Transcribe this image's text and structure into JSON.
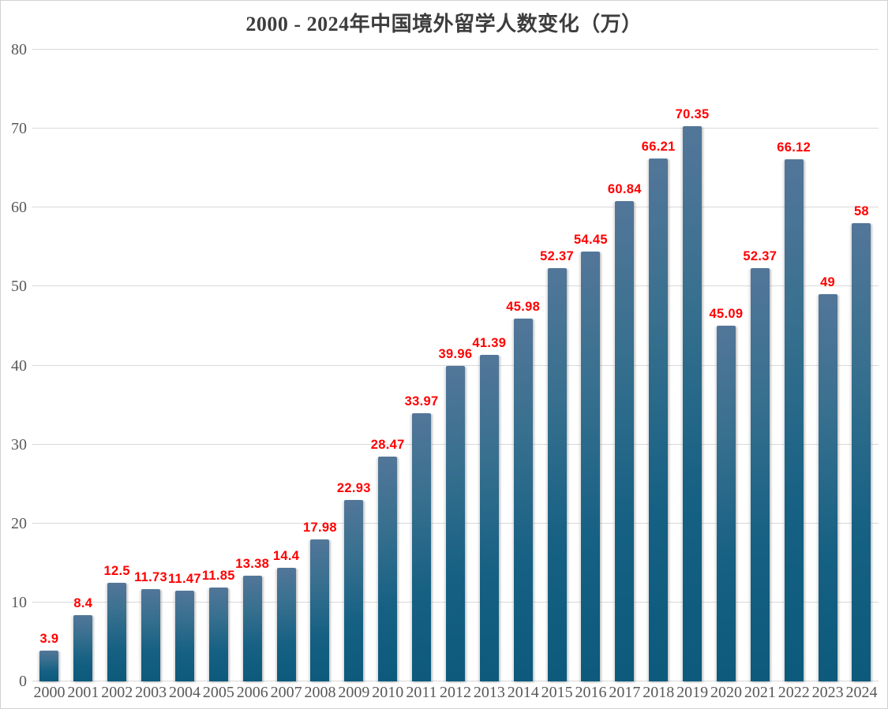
{
  "frame": {
    "background": "#ffffff",
    "border_color": "#d2d2d2"
  },
  "chart_data": {
    "type": "bar",
    "title": "2000 - 2024年中国境外留学人数变化（万）",
    "xlabel": "",
    "ylabel": "",
    "categories": [
      "2000",
      "2001",
      "2002",
      "2003",
      "2004",
      "2005",
      "2006",
      "2007",
      "2008",
      "2009",
      "2010",
      "2011",
      "2012",
      "2013",
      "2014",
      "2015",
      "2016",
      "2017",
      "2018",
      "2019",
      "2020",
      "2021",
      "2022",
      "2023",
      "2024"
    ],
    "values": [
      3.9,
      8.4,
      12.5,
      11.73,
      11.47,
      11.85,
      13.38,
      14.4,
      17.98,
      22.93,
      28.47,
      33.97,
      39.96,
      41.39,
      45.98,
      52.37,
      54.45,
      60.84,
      66.21,
      70.35,
      45.09,
      52.37,
      66.12,
      49,
      58
    ],
    "value_labels": [
      "3.9",
      "8.4",
      "12.5",
      "11.73",
      "11.47",
      "11.85",
      "13.38",
      "14.4",
      "17.98",
      "22.93",
      "28.47",
      "33.97",
      "39.96",
      "41.39",
      "45.98",
      "52.37",
      "54.45",
      "60.84",
      "66.21",
      "70.35",
      "45.09",
      "52.37",
      "66.12",
      "49",
      "58"
    ],
    "ylim": [
      0,
      80
    ],
    "y_ticks": [
      0,
      10,
      20,
      30,
      40,
      50,
      60,
      70,
      80
    ],
    "grid": true,
    "legend": "none",
    "colors": {
      "bar_top": "#527699",
      "bar_bottom": "#0d5a7c",
      "value_label": "#ff0000",
      "axis_label": "#595959",
      "title": "#3d3d3d",
      "gridline": "#d9d9d9"
    }
  }
}
